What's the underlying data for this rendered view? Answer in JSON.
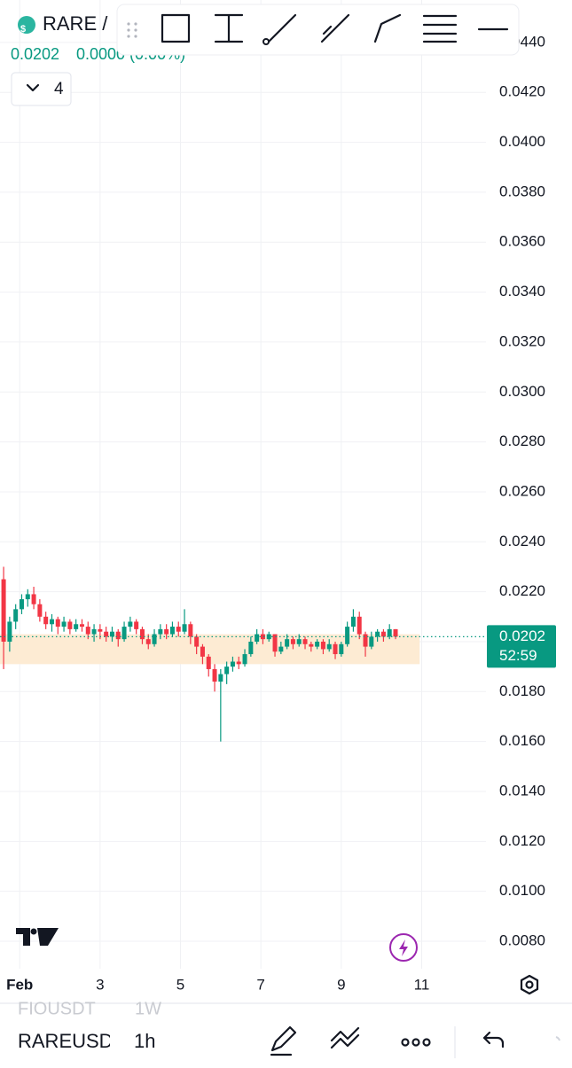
{
  "chart_data": {
    "type": "candlestick",
    "xlim": [
      0.51,
      12.6
    ],
    "xticks": [
      {
        "value": 1,
        "label": "Feb"
      },
      3,
      5,
      7,
      9,
      11
    ],
    "ylim": [
      0.0069,
      0.0457
    ],
    "yticks": [
      {
        "value": 0.008,
        "label": "0.0080"
      },
      {
        "value": 0.01,
        "label": "0.0100"
      },
      {
        "value": 0.012,
        "label": "0.0120"
      },
      {
        "value": 0.014,
        "label": "0.0140"
      },
      {
        "value": 0.016,
        "label": "0.0160"
      },
      {
        "value": 0.018,
        "label": "0.0180"
      },
      {
        "value": 0.02,
        "label": "0.0200"
      },
      {
        "value": 0.022,
        "label": "0.0220"
      },
      {
        "value": 0.024,
        "label": "0.0240"
      },
      {
        "value": 0.026,
        "label": "0.0260"
      },
      {
        "value": 0.028,
        "label": "0.0280"
      },
      {
        "value": 0.03,
        "label": "0.0300"
      },
      {
        "value": 0.032,
        "label": "0.0320"
      },
      {
        "value": 0.034,
        "label": "0.0340"
      },
      {
        "value": 0.036,
        "label": "0.0360"
      },
      {
        "value": 0.038,
        "label": "0.0380"
      },
      {
        "value": 0.04,
        "label": "0.0400"
      },
      {
        "value": 0.042,
        "label": "0.0420"
      },
      {
        "value": 0.044,
        "label": "0.0440"
      }
    ],
    "grid": true,
    "up_color": "#089981",
    "down_color": "#f23645",
    "x": [
      0.6,
      0.75,
      0.9,
      1.05,
      1.2,
      1.35,
      1.5,
      1.65,
      1.8,
      1.95,
      2.1,
      2.25,
      2.4,
      2.55,
      2.7,
      2.85,
      3.0,
      3.15,
      3.3,
      3.45,
      3.6,
      3.75,
      3.9,
      4.05,
      4.2,
      4.35,
      4.5,
      4.65,
      4.8,
      4.95,
      5.1,
      5.25,
      5.4,
      5.55,
      5.7,
      5.85,
      6.0,
      6.15,
      6.3,
      6.45,
      6.6,
      6.75,
      6.9,
      7.05,
      7.2,
      7.35,
      7.5,
      7.65,
      7.8,
      7.95,
      8.1,
      8.25,
      8.4,
      8.55,
      8.7,
      8.85,
      9.0,
      9.15,
      9.3,
      9.45,
      9.6,
      9.75,
      9.9,
      10.05,
      10.2,
      10.35
    ],
    "open": [
      0.0225,
      0.02,
      0.0208,
      0.0213,
      0.0217,
      0.0219,
      0.0215,
      0.021,
      0.0207,
      0.0209,
      0.0206,
      0.0208,
      0.0205,
      0.0207,
      0.0206,
      0.0203,
      0.0205,
      0.0204,
      0.0202,
      0.0204,
      0.0201,
      0.0206,
      0.0208,
      0.0205,
      0.0201,
      0.0199,
      0.0203,
      0.0205,
      0.0203,
      0.0206,
      0.0204,
      0.0207,
      0.0202,
      0.0198,
      0.0194,
      0.0189,
      0.0184,
      0.0187,
      0.019,
      0.0192,
      0.0191,
      0.0195,
      0.02,
      0.0203,
      0.0201,
      0.0203,
      0.0196,
      0.0198,
      0.0201,
      0.0199,
      0.0201,
      0.0199,
      0.0198,
      0.02,
      0.0197,
      0.0199,
      0.0195,
      0.0199,
      0.0206,
      0.021,
      0.0203,
      0.0198,
      0.0202,
      0.0204,
      0.0202,
      0.0205
    ],
    "high": [
      0.023,
      0.021,
      0.0215,
      0.0219,
      0.0221,
      0.0222,
      0.0217,
      0.0212,
      0.0211,
      0.021,
      0.021,
      0.0209,
      0.0209,
      0.0209,
      0.0208,
      0.0207,
      0.0207,
      0.0206,
      0.0206,
      0.0205,
      0.0208,
      0.021,
      0.0209,
      0.0206,
      0.0203,
      0.0205,
      0.0207,
      0.0207,
      0.0208,
      0.0208,
      0.0213,
      0.0208,
      0.0203,
      0.0199,
      0.0195,
      0.0191,
      0.0189,
      0.0192,
      0.0194,
      0.0194,
      0.0197,
      0.0202,
      0.0205,
      0.0205,
      0.0204,
      0.0203,
      0.02,
      0.0203,
      0.0202,
      0.0203,
      0.0202,
      0.02,
      0.0201,
      0.0201,
      0.0201,
      0.02,
      0.02,
      0.0208,
      0.0213,
      0.0212,
      0.0204,
      0.0204,
      0.0205,
      0.0205,
      0.0207,
      0.0205
    ],
    "low": [
      0.0189,
      0.0196,
      0.0205,
      0.0211,
      0.0214,
      0.0213,
      0.0208,
      0.0205,
      0.0204,
      0.0203,
      0.0204,
      0.0203,
      0.0204,
      0.0204,
      0.0201,
      0.02,
      0.0201,
      0.02,
      0.02,
      0.0198,
      0.02,
      0.0204,
      0.0203,
      0.0199,
      0.0197,
      0.0198,
      0.0201,
      0.0201,
      0.0202,
      0.0202,
      0.0203,
      0.0199,
      0.0195,
      0.0191,
      0.0186,
      0.018,
      0.016,
      0.0183,
      0.0188,
      0.0189,
      0.019,
      0.0194,
      0.0199,
      0.0199,
      0.02,
      0.0194,
      0.0195,
      0.0197,
      0.0197,
      0.0198,
      0.0197,
      0.0196,
      0.0197,
      0.0195,
      0.0196,
      0.0193,
      0.0194,
      0.0198,
      0.0204,
      0.0201,
      0.0194,
      0.0197,
      0.02,
      0.02,
      0.0201,
      0.0201
    ],
    "close": [
      0.02,
      0.0208,
      0.0213,
      0.0217,
      0.0219,
      0.0215,
      0.021,
      0.0207,
      0.0209,
      0.0206,
      0.0208,
      0.0205,
      0.0207,
      0.0206,
      0.0203,
      0.0205,
      0.0204,
      0.0202,
      0.0204,
      0.0201,
      0.0206,
      0.0208,
      0.0205,
      0.0201,
      0.0199,
      0.0203,
      0.0205,
      0.0203,
      0.0206,
      0.0204,
      0.0207,
      0.0202,
      0.0198,
      0.0194,
      0.0189,
      0.0184,
      0.0187,
      0.019,
      0.0192,
      0.0191,
      0.0195,
      0.02,
      0.0203,
      0.0201,
      0.0203,
      0.0196,
      0.0198,
      0.0201,
      0.0199,
      0.0201,
      0.0199,
      0.0198,
      0.02,
      0.0197,
      0.0199,
      0.0195,
      0.0199,
      0.0206,
      0.021,
      0.0203,
      0.0198,
      0.0202,
      0.0204,
      0.0202,
      0.0205,
      0.0202
    ],
    "zone": {
      "x": [
        0.51,
        10.95
      ],
      "y": [
        0.0191,
        0.0203
      ],
      "color": "#fdebd3"
    },
    "last_price": {
      "value": 0.0202,
      "label": "0.0202"
    },
    "countdown": "52:59"
  },
  "header": {
    "symbol": "RARE /",
    "change": "0.0000 (0.00%)",
    "indicators": "4"
  },
  "footer": {
    "other_symbol": "FIOUSDT",
    "other_interval": "1W",
    "symbol": "RAREUSDT",
    "interval": "1h"
  }
}
